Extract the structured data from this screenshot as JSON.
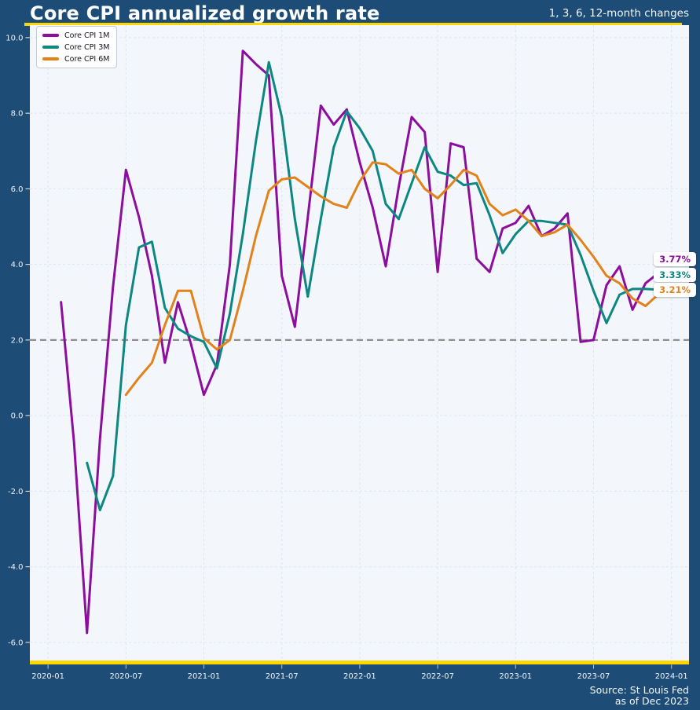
{
  "header": {
    "title": "Core CPI annualized growth rate",
    "subtitle": "1, 3, 6, 12-month changes"
  },
  "source": {
    "line1": "Source: St Louis Fed",
    "line2": "as of Dec 2023"
  },
  "colors": {
    "background": "#1d4d77",
    "accent_yellow": "#ffd700",
    "plot_background": "#f3f6fa",
    "gridline": "#dde5ed",
    "reference_line": "#8f8f8f",
    "tick_text": "#eef3f8"
  },
  "chart_data": {
    "type": "line",
    "title": "Core CPI annualized growth rate",
    "subtitle": "1, 3, 6, 12-month changes",
    "grid": true,
    "legend_position": "upper left",
    "reference_line": 2.0,
    "ylim": [
      -6.5,
      10.33
    ],
    "y_ticks": [
      "10.0",
      "8.0",
      "6.0",
      "4.0",
      "2.0",
      "0.0",
      "-2.0",
      "-4.0",
      "-6.0"
    ],
    "y_tick_values": [
      10,
      8,
      6,
      4,
      2,
      0,
      -2,
      -4,
      -6
    ],
    "x_ticks": [
      "2020-01",
      "2020-07",
      "2021-01",
      "2021-07",
      "2022-01",
      "2022-07",
      "2023-01",
      "2023-07",
      "2024-01"
    ],
    "x": [
      "2020-01",
      "2020-02",
      "2020-03",
      "2020-04",
      "2020-05",
      "2020-06",
      "2020-07",
      "2020-08",
      "2020-09",
      "2020-10",
      "2020-11",
      "2020-12",
      "2021-01",
      "2021-02",
      "2021-03",
      "2021-04",
      "2021-05",
      "2021-06",
      "2021-07",
      "2021-08",
      "2021-09",
      "2021-10",
      "2021-11",
      "2021-12",
      "2022-01",
      "2022-02",
      "2022-03",
      "2022-04",
      "2022-05",
      "2022-06",
      "2022-07",
      "2022-08",
      "2022-09",
      "2022-10",
      "2022-11",
      "2022-12",
      "2023-01",
      "2023-02",
      "2023-03",
      "2023-04",
      "2023-05",
      "2023-06",
      "2023-07",
      "2023-08",
      "2023-09",
      "2023-10",
      "2023-11",
      "2023-12"
    ],
    "series": [
      {
        "name": "Core CPI 1M",
        "color": "#8d0d9c",
        "end_label": "3.77%",
        "values": [
          null,
          3.0,
          -0.7,
          -5.75,
          -0.6,
          3.4,
          6.5,
          5.25,
          3.7,
          1.4,
          3.0,
          1.9,
          0.55,
          1.35,
          4.0,
          9.65,
          9.3,
          9.0,
          3.7,
          2.35,
          5.25,
          8.2,
          7.7,
          8.1,
          6.7,
          5.5,
          3.95,
          6.05,
          7.9,
          7.5,
          3.8,
          7.2,
          7.1,
          4.15,
          3.8,
          4.95,
          5.1,
          5.55,
          4.75,
          4.95,
          5.35,
          1.95,
          2.0,
          3.45,
          3.95,
          2.8,
          3.5,
          3.77
        ]
      },
      {
        "name": "Core CPI 3M",
        "color": "#0c8782",
        "end_label": "3.33%",
        "values": [
          null,
          null,
          null,
          -1.25,
          -2.5,
          -1.6,
          2.4,
          4.45,
          4.6,
          2.85,
          2.3,
          2.1,
          1.95,
          1.25,
          2.7,
          4.8,
          7.25,
          9.35,
          7.9,
          5.2,
          3.15,
          5.2,
          7.1,
          8.05,
          7.6,
          7.0,
          5.6,
          5.2,
          6.15,
          7.1,
          6.45,
          6.35,
          6.1,
          6.15,
          5.3,
          4.3,
          4.8,
          5.15,
          5.15,
          5.1,
          5.05,
          4.25,
          3.3,
          2.45,
          3.2,
          3.35,
          3.35,
          3.33
        ]
      },
      {
        "name": "Core CPI 6M",
        "color": "#e2821a",
        "end_label": "3.21%",
        "values": [
          null,
          null,
          null,
          null,
          null,
          null,
          0.55,
          1.0,
          1.4,
          2.4,
          3.3,
          3.3,
          2.05,
          1.75,
          2.0,
          3.3,
          4.75,
          5.95,
          6.25,
          6.3,
          6.05,
          5.8,
          5.6,
          5.5,
          6.2,
          6.7,
          6.65,
          6.4,
          6.5,
          6.0,
          5.75,
          6.1,
          6.5,
          6.35,
          5.6,
          5.3,
          5.45,
          5.15,
          4.75,
          4.85,
          5.05,
          4.65,
          4.2,
          3.7,
          3.5,
          3.1,
          2.9,
          3.21
        ]
      }
    ]
  }
}
